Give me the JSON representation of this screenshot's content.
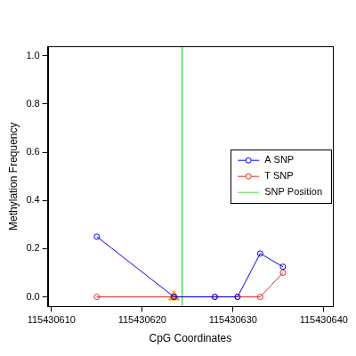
{
  "chart_data": {
    "type": "line",
    "x_label": "CpG Coordinates",
    "y_label": "Methylation Frequency",
    "series": [
      {
        "name": "A SNP",
        "color": "#0000ff",
        "marker": "circle",
        "x": [
          115430615,
          115430623.5,
          115430628,
          115430630.5,
          115430633,
          115430635.5
        ],
        "values": [
          0.25,
          0.0,
          0.0,
          0.0,
          0.18,
          0.125
        ]
      },
      {
        "name": "T SNP",
        "color": "#e8281e",
        "marker": "circle",
        "x": [
          115430615,
          115430623.5,
          115430628,
          115430630.5,
          115430633,
          115430635.5
        ],
        "values": [
          0.0,
          0.0,
          0.0,
          0.0,
          0.0,
          0.1
        ]
      }
    ],
    "snp_position": {
      "name": "SNP Position",
      "color": "#4fdc4f",
      "x": 115430624.4
    },
    "snp_marker": {
      "x": 115430623.5,
      "y": 0.0,
      "color": "#ffa500",
      "marker": "triangle"
    },
    "xlim": [
      115430609.6,
      115430641.0
    ],
    "xticks": [
      115430610,
      115430620,
      115430630,
      115430640
    ],
    "ylim": [
      -0.04,
      1.04
    ],
    "yticks": [
      {
        "value": 0,
        "label": "0.0"
      },
      {
        "value": 0.2,
        "label": "0.2"
      },
      {
        "value": 0.4,
        "label": "0.4"
      },
      {
        "value": 0.6,
        "label": "0.6"
      },
      {
        "value": 0.8,
        "label": "0.8"
      },
      {
        "value": 1,
        "label": "1.0"
      }
    ],
    "grid": false,
    "legend": "right"
  }
}
